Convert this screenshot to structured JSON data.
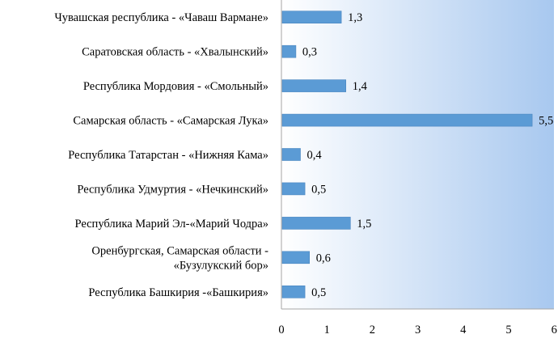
{
  "chart_data": {
    "type": "bar",
    "orientation": "horizontal",
    "categories": [
      "Чувашская республика - «Чаваш Вармане»",
      "Саратовская область - «Хвалынский»",
      "Республика Мордовия - «Смольный»",
      "Самарская область - «Самарская Лука»",
      "Республика Татарстан - «Нижняя Кама»",
      "Республика Удмуртия - «Нечкинский»",
      "Республика Марий Эл-«Марий Чодра»",
      [
        "Оренбургская, Самарская области -",
        "«Бузулукский бор»"
      ],
      "Республика Башкирия -«Башкирия»"
    ],
    "values": [
      1.3,
      0.3,
      1.4,
      5.5,
      0.4,
      0.5,
      1.5,
      0.6,
      0.5
    ],
    "data_labels": [
      "1,3",
      "0,3",
      "1,4",
      "5,5",
      "0,4",
      "0,5",
      "1,5",
      "0,6",
      "0,5"
    ],
    "x_ticks": [
      "0",
      "1",
      "2",
      "3",
      "4",
      "5",
      "6"
    ],
    "xlim": [
      0,
      6
    ],
    "grid": false,
    "legend": "none",
    "colors": {
      "bar": "#5b9bd5",
      "bar_edge": "#4a86c0",
      "plot_bg_start": "#ffffff",
      "plot_bg_end": "#a8c8ef",
      "axis": "#a6a6a6"
    }
  }
}
